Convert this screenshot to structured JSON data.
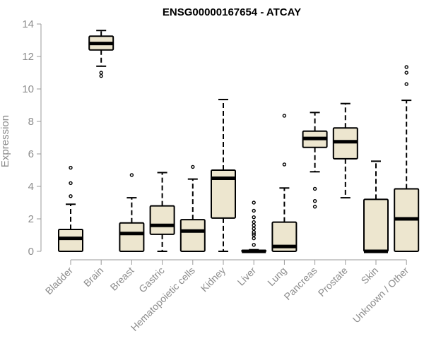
{
  "chart_data": {
    "type": "box",
    "title": "ENSG00000167654 - ATCAY",
    "xlabel": "",
    "ylabel": "Expression",
    "ylim": [
      0,
      14
    ],
    "yticks": [
      0,
      2,
      4,
      6,
      8,
      10,
      12,
      14
    ],
    "categories": [
      "Bladder",
      "Brain",
      "Breast",
      "Gastric",
      "Hematopoietic cells",
      "Kidney",
      "Liver",
      "Lung",
      "Pancreas",
      "Prostate",
      "Skin",
      "Unknown / Other"
    ],
    "boxes": [
      {
        "category": "Bladder",
        "whisker_low": 0,
        "q1": 0,
        "median": 0.8,
        "q3": 1.35,
        "whisker_high": 2.9,
        "outliers": [
          3.4,
          4.2,
          5.15
        ]
      },
      {
        "category": "Brain",
        "whisker_low": 11.4,
        "q1": 12.4,
        "median": 12.8,
        "q3": 13.25,
        "whisker_high": 13.6,
        "outliers": [
          10.8,
          11.0
        ]
      },
      {
        "category": "Breast",
        "whisker_low": 0,
        "q1": 0,
        "median": 1.1,
        "q3": 1.75,
        "whisker_high": 3.3,
        "outliers": [
          4.7
        ]
      },
      {
        "category": "Gastric",
        "whisker_low": 0,
        "q1": 1.05,
        "median": 1.6,
        "q3": 2.8,
        "whisker_high": 4.85,
        "outliers": []
      },
      {
        "category": "Hematopoietic cells",
        "whisker_low": 0,
        "q1": 0,
        "median": 1.25,
        "q3": 1.95,
        "whisker_high": 4.45,
        "outliers": [
          5.2
        ]
      },
      {
        "category": "Kidney",
        "whisker_low": 0,
        "q1": 2.05,
        "median": 4.5,
        "q3": 5.0,
        "whisker_high": 9.35,
        "outliers": []
      },
      {
        "category": "Liver",
        "whisker_low": 0,
        "q1": 0,
        "median": 0,
        "q3": 0.05,
        "whisker_high": 0.1,
        "outliers": [
          0.4,
          0.8,
          1.0,
          1.1,
          1.2,
          1.4,
          1.6,
          1.8,
          2.1,
          2.5,
          3.0
        ]
      },
      {
        "category": "Lung",
        "whisker_low": 0,
        "q1": 0,
        "median": 0.3,
        "q3": 1.8,
        "whisker_high": 3.9,
        "outliers": [
          5.35,
          8.35
        ]
      },
      {
        "category": "Pancreas",
        "whisker_low": 4.9,
        "q1": 6.4,
        "median": 6.95,
        "q3": 7.4,
        "whisker_high": 8.55,
        "outliers": [
          2.75,
          3.1,
          3.85
        ]
      },
      {
        "category": "Prostate",
        "whisker_low": 3.3,
        "q1": 5.7,
        "median": 6.75,
        "q3": 7.6,
        "whisker_high": 9.1,
        "outliers": []
      },
      {
        "category": "Skin",
        "whisker_low": 0,
        "q1": 0,
        "median": 0,
        "q3": 3.2,
        "whisker_high": 5.55,
        "outliers": []
      },
      {
        "category": "Unknown / Other",
        "whisker_low": 0,
        "q1": 0,
        "median": 2.0,
        "q3": 3.85,
        "whisker_high": 9.3,
        "outliers": [
          10.3,
          11.0,
          11.35
        ]
      }
    ]
  },
  "colors": {
    "box_fill": "#ede6cf",
    "box_stroke": "#000000",
    "axis": "#9a9a9a",
    "label": "#8c8c8c"
  }
}
